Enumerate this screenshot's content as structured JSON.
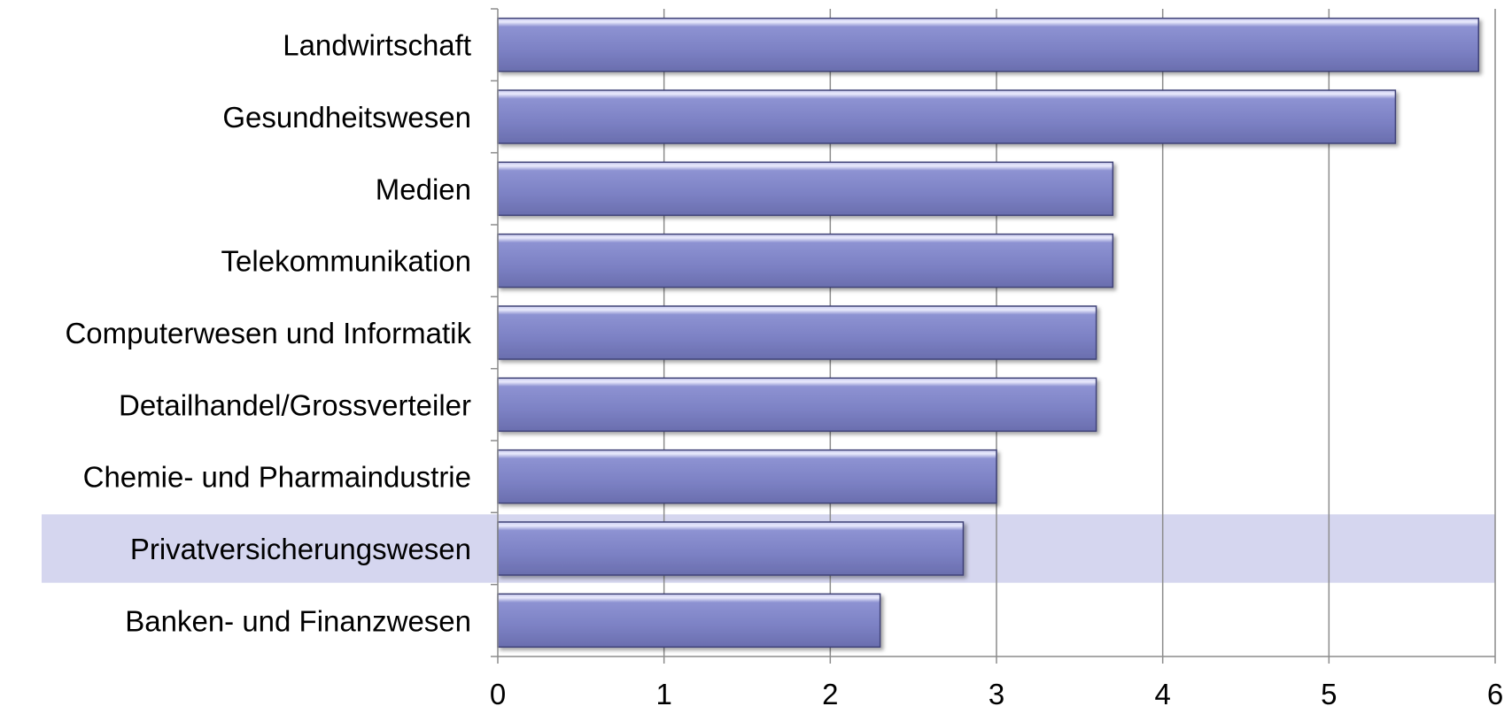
{
  "chart_data": {
    "type": "bar",
    "orientation": "horizontal",
    "categories": [
      "Landwirtschaft",
      "Gesundheitswesen",
      "Medien",
      "Telekommunikation",
      "Computerwesen und Informatik",
      "Detailhandel/Grossverteiler",
      "Chemie- und Pharmaindustrie",
      "Privatversicherungswesen",
      "Banken- und Finanzwesen"
    ],
    "values": [
      5.9,
      5.4,
      3.7,
      3.7,
      3.6,
      3.6,
      3.0,
      2.8,
      2.3
    ],
    "xlim": [
      0,
      6
    ],
    "xticks": [
      "0",
      "1",
      "2",
      "3",
      "4",
      "5",
      "6"
    ],
    "grid": "vertical",
    "highlighted_category": "Privatversicherungswesen",
    "colors": {
      "bar": "#8085c7",
      "highlight": "#d5d6ef",
      "grid": "#8c8c8c"
    }
  }
}
